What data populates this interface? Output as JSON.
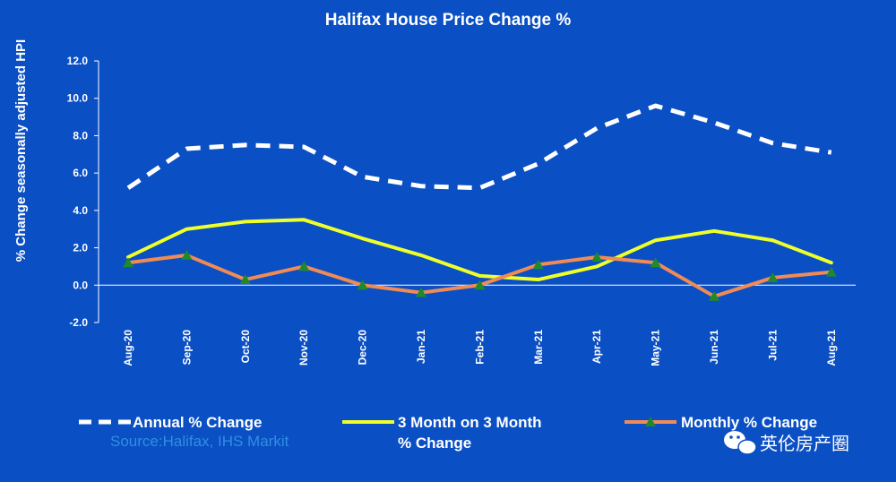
{
  "chart_data": {
    "type": "line",
    "title": "Halifax House Price Change %",
    "ylabel": "% Change seasonally adjusted HPI",
    "xlabel": "",
    "ylim": [
      -2.0,
      12.0
    ],
    "yticks": [
      "-2.0",
      "0.0",
      "2.0",
      "4.0",
      "6.0",
      "8.0",
      "10.0",
      "12.0"
    ],
    "categories": [
      "Aug-20",
      "Sep-20",
      "Oct-20",
      "Nov-20",
      "Dec-20",
      "Jan-21",
      "Feb-21",
      "Mar-21",
      "Apr-21",
      "May-21",
      "Jun-21",
      "Jul-21",
      "Aug-21"
    ],
    "grid": false,
    "legend_position": "bottom",
    "series": [
      {
        "name": "Annual % Change",
        "values": [
          5.2,
          7.3,
          7.5,
          7.4,
          5.8,
          5.3,
          5.2,
          6.5,
          8.4,
          9.6,
          8.7,
          7.6,
          7.1
        ],
        "color": "#ffffff",
        "style": "dashed"
      },
      {
        "name": "3 Month on 3 Month % Change",
        "values": [
          1.5,
          3.0,
          3.4,
          3.5,
          2.5,
          1.6,
          0.5,
          0.3,
          1.0,
          2.4,
          2.9,
          2.4,
          1.2
        ],
        "color": "#eeff2a",
        "style": "solid"
      },
      {
        "name": "Monthly % Change",
        "values": [
          1.2,
          1.6,
          0.3,
          1.0,
          0.0,
          -0.4,
          0.0,
          1.1,
          1.5,
          1.2,
          -0.6,
          0.4,
          0.7
        ],
        "color": "#f08b55",
        "marker_color": "#1f8a2a",
        "style": "solid-marker"
      }
    ]
  },
  "source": "Source:Halifax, IHS Markit",
  "watermark": "英伦房产圈"
}
